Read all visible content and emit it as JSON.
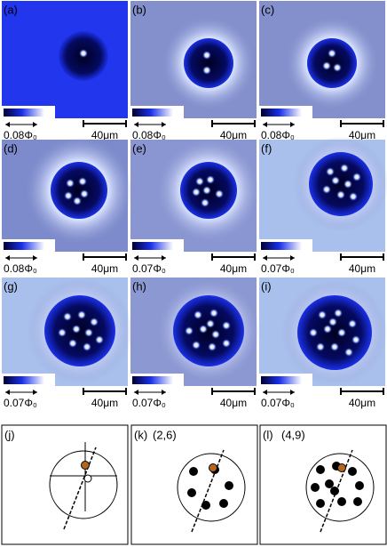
{
  "panels": [
    {
      "label": "(a)",
      "flux": "0.08Φ₀",
      "scale": "40μm"
    },
    {
      "label": "(b)",
      "flux": "0.08Φ₀",
      "scale": "40μm"
    },
    {
      "label": "(c)",
      "flux": "0.08Φ₀",
      "scale": "40μm"
    },
    {
      "label": "(d)",
      "flux": "0.08Φ₀",
      "scale": "40μm"
    },
    {
      "label": "(e)",
      "flux": "0.07Φ₀",
      "scale": "40μm"
    },
    {
      "label": "(f)",
      "flux": "0.07Φ₀",
      "scale": "40μm"
    },
    {
      "label": "(g)",
      "flux": "0.07Φ₀",
      "scale": "40μm"
    },
    {
      "label": "(h)",
      "flux": "0.07Φ₀",
      "scale": "40μm"
    },
    {
      "label": "(i)",
      "flux": "0.07Φ₀",
      "scale": "40μm"
    }
  ],
  "schematics": [
    {
      "label": "(j)"
    },
    {
      "label": "(k)",
      "config": "(2,6)"
    },
    {
      "label": "(l)",
      "config": "(4,9)"
    }
  ]
}
